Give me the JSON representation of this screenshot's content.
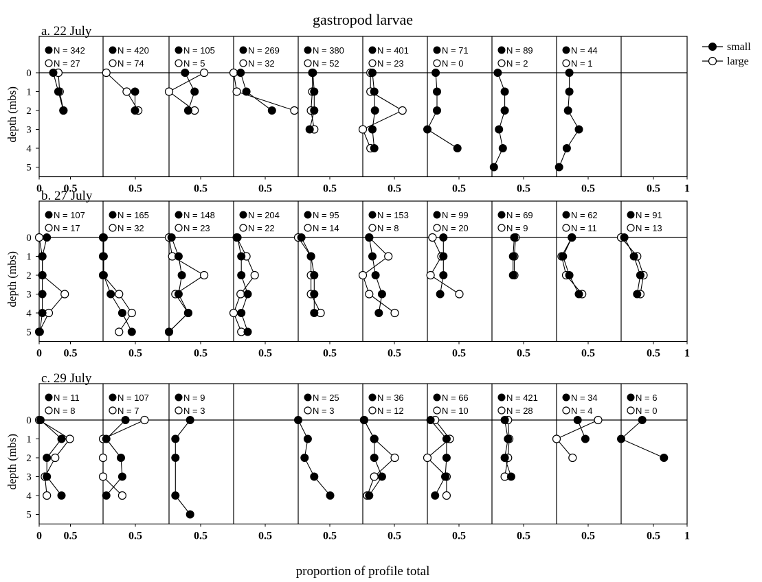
{
  "title": "gastropod larvae",
  "xlabel": "proportion of profile total",
  "ylabel": "depth (mbs)",
  "legend": [
    {
      "key": "small",
      "label": "small",
      "marker": "filled-circle"
    },
    {
      "key": "large",
      "label": "large",
      "marker": "open-circle"
    }
  ],
  "chart_data": [
    {
      "type": "line",
      "label": "a. 22 July",
      "depth_ticks": [
        "0",
        "1",
        "2",
        "3",
        "4",
        "5"
      ],
      "x_tick_labels": [
        "0",
        "0.5",
        "0.5",
        "0.5",
        "0.5",
        "0.5",
        "0.5",
        "0.5",
        "0.5",
        "0.5",
        "0.5",
        "1"
      ],
      "panels": [
        {
          "small_n_label": "N = 342",
          "large_n_label": "N = 27",
          "small": [
            0.22,
            0.3,
            0.38,
            null,
            null,
            null
          ],
          "large": [
            0.3,
            0.32,
            0.38,
            null,
            null,
            null
          ]
        },
        {
          "small_n_label": "N = 420",
          "large_n_label": "N = 74",
          "small": [
            null,
            0.5,
            0.5,
            null,
            null,
            null
          ],
          "large": [
            0.05,
            0.37,
            0.55,
            null,
            null,
            null
          ]
        },
        {
          "small_n_label": "N = 105",
          "large_n_label": "N = 5",
          "small": [
            0.25,
            0.4,
            0.3,
            null,
            null,
            null
          ],
          "large": [
            0.55,
            0.0,
            0.4,
            null,
            null,
            null
          ]
        },
        {
          "small_n_label": "N = 269",
          "large_n_label": "N = 32",
          "small": [
            0.11,
            0.2,
            0.6,
            null,
            null,
            null
          ],
          "large": [
            0.0,
            0.05,
            0.95,
            null,
            null,
            null
          ]
        },
        {
          "small_n_label": "N = 380",
          "large_n_label": "N = 52",
          "small": [
            0.23,
            0.25,
            0.25,
            0.18,
            null,
            null
          ],
          "large": [
            0.22,
            0.22,
            0.2,
            0.25,
            null,
            null
          ]
        },
        {
          "small_n_label": "N = 401",
          "large_n_label": "N = 23",
          "small": [
            0.15,
            0.18,
            0.19,
            0.15,
            0.18,
            null
          ],
          "large": [
            0.12,
            0.12,
            0.62,
            0.0,
            0.12,
            null
          ]
        },
        {
          "small_n_label": "N = 71",
          "large_n_label": "N = 0",
          "small": [
            0.13,
            0.15,
            0.15,
            0.0,
            0.47,
            null
          ],
          "large": [
            null,
            null,
            null,
            null,
            null,
            null
          ]
        },
        {
          "small_n_label": "N = 89",
          "large_n_label": "N = 2",
          "small": [
            0.09,
            0.2,
            0.2,
            0.11,
            0.17,
            0.03
          ],
          "large": [
            null,
            null,
            null,
            null,
            null,
            null
          ]
        },
        {
          "small_n_label": "N = 44",
          "large_n_label": "N = 1",
          "small": [
            0.2,
            0.2,
            0.18,
            0.35,
            0.16,
            0.04
          ],
          "large": [
            null,
            null,
            null,
            null,
            null,
            null
          ]
        },
        {
          "small_n_label": "",
          "large_n_label": "",
          "small": [
            null,
            null,
            null,
            null,
            null,
            null
          ],
          "large": [
            null,
            null,
            null,
            null,
            null,
            null
          ]
        }
      ]
    },
    {
      "type": "line",
      "label": "b. 27 July",
      "depth_ticks": [
        "0",
        "1",
        "2",
        "3",
        "4",
        "5"
      ],
      "x_tick_labels": [
        "0",
        "0.5",
        "0.5",
        "0.5",
        "0.5",
        "0.5",
        "0.5",
        "0.5",
        "0.5",
        "0.5",
        "0.5",
        "1"
      ],
      "panels": [
        {
          "small_n_label": "N = 107",
          "large_n_label": "N = 17",
          "small": [
            0.12,
            0.05,
            0.05,
            0.05,
            0.05,
            0.01
          ],
          "large": [
            0.0,
            0.05,
            0.05,
            0.4,
            0.15,
            0.0
          ]
        },
        {
          "small_n_label": "N = 165",
          "large_n_label": "N = 32",
          "small": [
            0.01,
            0.01,
            0.01,
            0.12,
            0.3,
            0.45
          ],
          "large": [
            0.0,
            0.0,
            0.0,
            0.25,
            0.45,
            0.25
          ]
        },
        {
          "small_n_label": "N = 148",
          "large_n_label": "N = 23",
          "small": [
            0.04,
            0.15,
            0.2,
            0.15,
            0.3,
            0.0
          ],
          "large": [
            0.0,
            0.05,
            0.55,
            0.1,
            0.3,
            0.0
          ]
        },
        {
          "small_n_label": "N = 204",
          "large_n_label": "N = 22",
          "small": [
            0.06,
            0.12,
            0.12,
            0.22,
            0.12,
            0.22
          ],
          "large": [
            0.05,
            0.2,
            0.33,
            0.11,
            0.0,
            0.12
          ]
        },
        {
          "small_n_label": "N = 95",
          "large_n_label": "N = 14",
          "small": [
            0.05,
            0.2,
            0.25,
            0.25,
            0.25,
            null
          ],
          "large": [
            0.0,
            0.2,
            0.2,
            0.2,
            0.35,
            null
          ]
        },
        {
          "small_n_label": "N = 153",
          "large_n_label": "N = 8",
          "small": [
            0.1,
            0.15,
            0.2,
            0.3,
            0.25,
            null
          ],
          "large": [
            0.1,
            0.4,
            0.0,
            0.1,
            0.5,
            null
          ]
        },
        {
          "small_n_label": "N = 99",
          "large_n_label": "N = 20",
          "small": [
            0.25,
            0.25,
            0.25,
            0.2,
            null,
            null
          ],
          "large": [
            0.08,
            0.22,
            0.05,
            0.5,
            null,
            null
          ]
        },
        {
          "small_n_label": "N = 69",
          "large_n_label": "N = 9",
          "small": [
            0.35,
            0.33,
            0.33,
            null,
            null,
            null
          ],
          "large": [
            0.37,
            0.35,
            0.35,
            null,
            null,
            null
          ]
        },
        {
          "small_n_label": "N = 62",
          "large_n_label": "N = 11",
          "small": [
            0.24,
            0.1,
            0.2,
            0.35,
            null,
            null
          ],
          "large": [
            0.24,
            0.08,
            0.15,
            0.4,
            null,
            null
          ]
        },
        {
          "small_n_label": "N = 91",
          "large_n_label": "N = 13",
          "small": [
            0.05,
            0.2,
            0.3,
            0.25,
            null,
            null
          ],
          "large": [
            0.0,
            0.25,
            0.35,
            0.3,
            null,
            null
          ]
        }
      ]
    },
    {
      "type": "line",
      "label": "c. 29 July",
      "depth_ticks": [
        "0",
        "1",
        "2",
        "3",
        "4",
        "5"
      ],
      "x_tick_labels": [
        "0",
        "0.5",
        "0.5",
        "0.5",
        "0.5",
        "0.5",
        "0.5",
        "0.5",
        "0.5",
        "0.5",
        "0.5",
        "1"
      ],
      "panels": [
        {
          "small_n_label": "N = 11",
          "large_n_label": "N = 8",
          "small": [
            0.02,
            0.35,
            0.12,
            0.12,
            0.35,
            null
          ],
          "large": [
            0.0,
            0.48,
            0.25,
            0.09,
            0.12,
            null
          ]
        },
        {
          "small_n_label": "N = 107",
          "large_n_label": "N = 7",
          "small": [
            0.35,
            0.05,
            0.28,
            0.3,
            0.05,
            null
          ],
          "large": [
            0.65,
            0.0,
            0.0,
            0.0,
            0.3,
            null
          ]
        },
        {
          "small_n_label": "N = 9",
          "large_n_label": "N = 3",
          "small": [
            0.33,
            0.1,
            0.1,
            null,
            0.1,
            0.33
          ],
          "large": [
            null,
            null,
            null,
            null,
            null,
            null
          ]
        },
        {
          "small_n_label": "",
          "large_n_label": "",
          "small": [
            null,
            null,
            null,
            null,
            null,
            null
          ],
          "large": [
            null,
            null,
            null,
            null,
            null,
            null
          ]
        },
        {
          "small_n_label": "N = 25",
          "large_n_label": "N = 3",
          "small": [
            0.0,
            0.15,
            0.1,
            0.25,
            0.5,
            null
          ],
          "large": [
            null,
            null,
            null,
            null,
            null,
            null
          ]
        },
        {
          "small_n_label": "N = 36",
          "large_n_label": "N = 12",
          "small": [
            0.02,
            0.18,
            0.18,
            0.3,
            0.1,
            null
          ],
          "large": [
            0.02,
            0.18,
            0.5,
            0.18,
            0.07,
            null
          ]
        },
        {
          "small_n_label": "N = 66",
          "large_n_label": "N = 10",
          "small": [
            0.05,
            0.3,
            0.3,
            0.28,
            0.12,
            null
          ],
          "large": [
            0.12,
            0.35,
            0.0,
            0.3,
            0.3,
            null
          ]
        },
        {
          "small_n_label": "N = 421",
          "large_n_label": "N = 28",
          "small": [
            0.2,
            0.25,
            0.2,
            0.3,
            null,
            null
          ],
          "large": [
            0.25,
            0.27,
            0.25,
            0.2,
            null,
            null
          ]
        },
        {
          "small_n_label": "N = 34",
          "large_n_label": "N = 4",
          "small": [
            0.33,
            0.45,
            null,
            null,
            null,
            null
          ],
          "large": [
            0.65,
            0.0,
            0.25,
            null,
            null,
            null
          ]
        },
        {
          "small_n_label": "N = 6",
          "large_n_label": "N = 0",
          "small": [
            0.33,
            0.0,
            0.67,
            null,
            null,
            null
          ],
          "large": [
            null,
            null,
            null,
            null,
            null,
            null
          ]
        }
      ]
    }
  ]
}
